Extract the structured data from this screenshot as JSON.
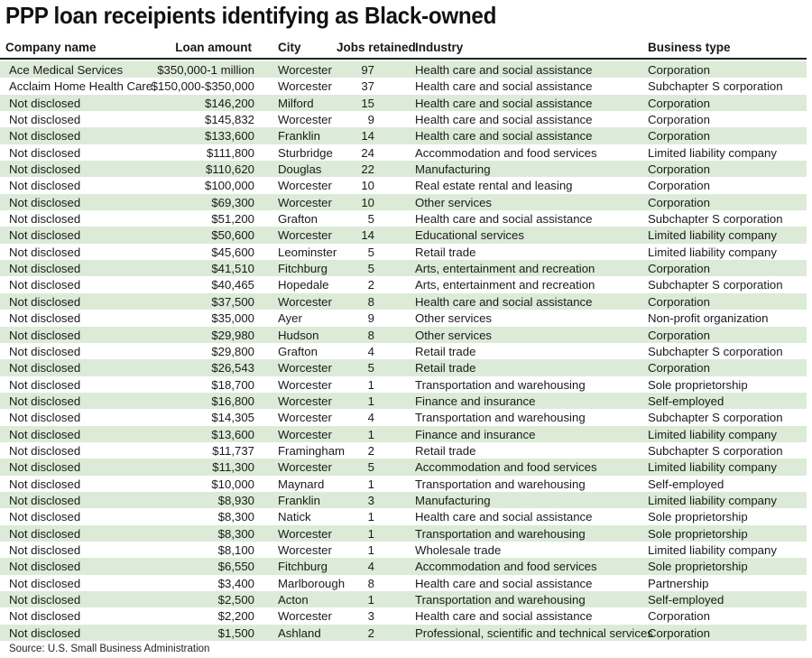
{
  "chart_data": {
    "type": "table",
    "title": "PPP loan receipients identifying as Black-owned",
    "columns": [
      "Company name",
      "Loan amount",
      "City",
      "Jobs retained",
      "Industry",
      "Business type"
    ],
    "rows": [
      [
        "Ace Medical Services",
        "$350,000-1 million",
        "Worcester",
        "97",
        "Health care and social assistance",
        "Corporation"
      ],
      [
        "Acclaim Home Health Care",
        "$150,000-$350,000",
        "Worcester",
        "37",
        "Health care and social assistance",
        "Subchapter S corporation"
      ],
      [
        "Not disclosed",
        "$146,200",
        "Milford",
        "15",
        "Health care and social assistance",
        "Corporation"
      ],
      [
        "Not disclosed",
        "$145,832",
        "Worcester",
        "9",
        "Health care and social assistance",
        "Corporation"
      ],
      [
        "Not disclosed",
        "$133,600",
        "Franklin",
        "14",
        "Health care and social assistance",
        "Corporation"
      ],
      [
        "Not disclosed",
        "$111,800",
        "Sturbridge",
        "24",
        "Accommodation and food services",
        "Limited liability company"
      ],
      [
        "Not disclosed",
        "$110,620",
        "Douglas",
        "22",
        "Manufacturing",
        "Corporation"
      ],
      [
        "Not disclosed",
        "$100,000",
        "Worcester",
        "10",
        "Real estate rental and leasing",
        "Corporation"
      ],
      [
        "Not disclosed",
        "$69,300",
        "Worcester",
        "10",
        "Other services",
        "Corporation"
      ],
      [
        "Not disclosed",
        "$51,200",
        "Grafton",
        "5",
        "Health care and social assistance",
        "Subchapter S corporation"
      ],
      [
        "Not disclosed",
        "$50,600",
        "Worcester",
        "14",
        "Educational services",
        "Limited liability company"
      ],
      [
        "Not disclosed",
        "$45,600",
        "Leominster",
        "5",
        "Retail trade",
        "Limited liability company"
      ],
      [
        "Not disclosed",
        "$41,510",
        "Fitchburg",
        "5",
        "Arts, entertainment and recreation",
        "Corporation"
      ],
      [
        "Not disclosed",
        "$40,465",
        "Hopedale",
        "2",
        "Arts, entertainment and recreation",
        "Subchapter S corporation"
      ],
      [
        "Not disclosed",
        "$37,500",
        "Worcester",
        "8",
        "Health care and social assistance",
        "Corporation"
      ],
      [
        "Not disclosed",
        "$35,000",
        "Ayer",
        "9",
        "Other services",
        "Non-profit organization"
      ],
      [
        "Not disclosed",
        "$29,980",
        "Hudson",
        "8",
        "Other services",
        "Corporation"
      ],
      [
        "Not disclosed",
        "$29,800",
        "Grafton",
        "4",
        "Retail trade",
        "Subchapter S corporation"
      ],
      [
        "Not disclosed",
        "$26,543",
        "Worcester",
        "5",
        "Retail trade",
        "Corporation"
      ],
      [
        "Not disclosed",
        "$18,700",
        "Worcester",
        "1",
        "Transportation and warehousing",
        "Sole proprietorship"
      ],
      [
        "Not disclosed",
        "$16,800",
        "Worcester",
        "1",
        "Finance and insurance",
        "Self-employed"
      ],
      [
        "Not disclosed",
        "$14,305",
        "Worcester",
        "4",
        "Transportation and warehousing",
        "Subchapter S corporation"
      ],
      [
        "Not disclosed",
        "$13,600",
        "Worcester",
        "1",
        "Finance and insurance",
        "Limited liability company"
      ],
      [
        "Not disclosed",
        "$11,737",
        "Framingham",
        "2",
        "Retail trade",
        "Subchapter S corporation"
      ],
      [
        "Not disclosed",
        "$11,300",
        "Worcester",
        "5",
        "Accommodation and food services",
        "Limited liability company"
      ],
      [
        "Not disclosed",
        "$10,000",
        "Maynard",
        "1",
        "Transportation and warehousing",
        "Self-employed"
      ],
      [
        "Not disclosed",
        "$8,930",
        "Franklin",
        "3",
        "Manufacturing",
        "Limited liability company"
      ],
      [
        "Not disclosed",
        "$8,300",
        "Natick",
        "1",
        "Health care and social assistance",
        "Sole proprietorship"
      ],
      [
        "Not disclosed",
        "$8,300",
        "Worcester",
        "1",
        "Transportation and warehousing",
        "Sole proprietorship"
      ],
      [
        "Not disclosed",
        "$8,100",
        "Worcester",
        "1",
        "Wholesale trade",
        "Limited liability company"
      ],
      [
        "Not disclosed",
        "$6,550",
        "Fitchburg",
        "4",
        "Accommodation and food services",
        "Sole proprietorship"
      ],
      [
        "Not disclosed",
        "$3,400",
        "Marlborough",
        "8",
        "Health care and social assistance",
        "Partnership"
      ],
      [
        "Not disclosed",
        "$2,500",
        "Acton",
        "1",
        "Transportation and warehousing",
        "Self-employed"
      ],
      [
        "Not disclosed",
        "$2,200",
        "Worcester",
        "3",
        "Health care and social assistance",
        "Corporation"
      ],
      [
        "Not disclosed",
        "$1,500",
        "Ashland",
        "2",
        "Professional, scientific and technical services",
        "Corporation"
      ]
    ],
    "source": "Source: U.S. Small Business Administration",
    "stripe_color": "#dcebd7"
  }
}
